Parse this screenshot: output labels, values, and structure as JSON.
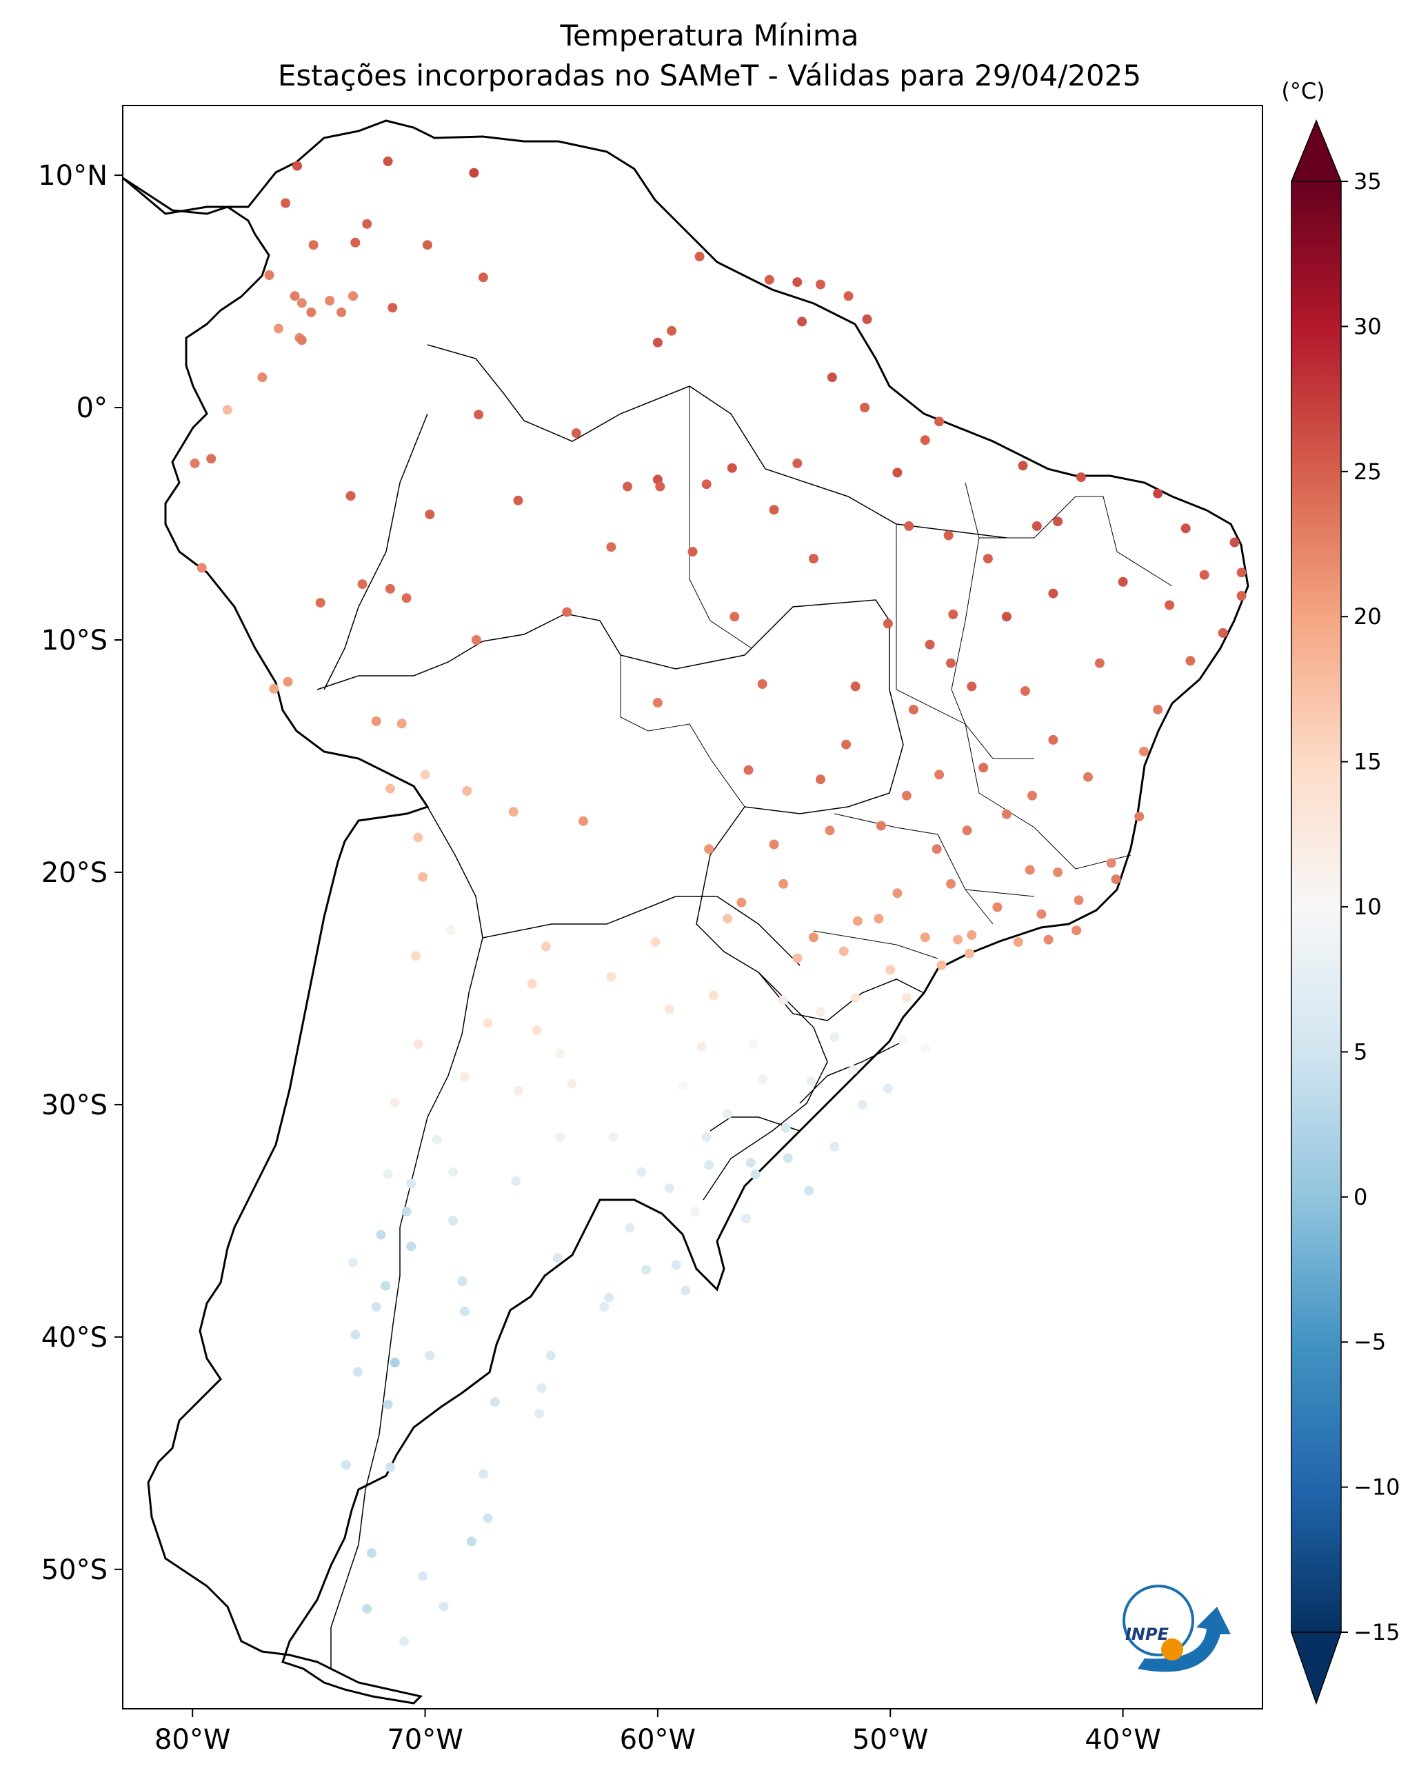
{
  "title": {
    "line1": "Temperatura Mínima",
    "line2": "Estações incorporadas no SAMeT - Válidas para 29/04/2025"
  },
  "map": {
    "lon_range": [
      -83,
      -34
    ],
    "lat_range": [
      -56,
      13
    ],
    "x_ticks": [
      {
        "lon": -80,
        "label": "80°W"
      },
      {
        "lon": -70,
        "label": "70°W"
      },
      {
        "lon": -60,
        "label": "60°W"
      },
      {
        "lon": -50,
        "label": "50°W"
      },
      {
        "lon": -40,
        "label": "40°W"
      }
    ],
    "y_ticks": [
      {
        "lat": 10,
        "label": "10°N"
      },
      {
        "lat": 0,
        "label": "0°"
      },
      {
        "lat": -10,
        "label": "10°S"
      },
      {
        "lat": -20,
        "label": "20°S"
      },
      {
        "lat": -30,
        "label": "30°S"
      },
      {
        "lat": -40,
        "label": "40°S"
      },
      {
        "lat": -50,
        "label": "50°S"
      }
    ]
  },
  "colorbar": {
    "unit": "(°C)",
    "min": -15,
    "max": 35,
    "extend": "both",
    "ticks": [
      {
        "value": 35,
        "label": "35"
      },
      {
        "value": 30,
        "label": "30"
      },
      {
        "value": 25,
        "label": "25"
      },
      {
        "value": 20,
        "label": "20"
      },
      {
        "value": 15,
        "label": "15"
      },
      {
        "value": 10,
        "label": "10"
      },
      {
        "value": 5,
        "label": "5"
      },
      {
        "value": 0,
        "label": "0"
      },
      {
        "value": -5,
        "label": "−5"
      },
      {
        "value": -10,
        "label": "−10"
      },
      {
        "value": -15,
        "label": "−15"
      }
    ],
    "colormap": "RdBu_r"
  },
  "logo": {
    "text": "INPE",
    "icon": "inpe-logo-icon"
  },
  "chart_data": {
    "type": "scatter",
    "title": "Temperatura Mínima — Estações incorporadas no SAMeT - Válidas para 29/04/2025",
    "points": [
      [
        -75.5,
        10.4,
        26
      ],
      [
        -71.6,
        10.6,
        26
      ],
      [
        -67.9,
        10.1,
        27
      ],
      [
        -72.5,
        7.9,
        25
      ],
      [
        -67.5,
        5.6,
        25
      ],
      [
        -76.0,
        8.8,
        25
      ],
      [
        -74.8,
        7.0,
        24
      ],
      [
        -73.0,
        7.1,
        25
      ],
      [
        -69.9,
        7.0,
        25
      ],
      [
        -76.7,
        5.7,
        23
      ],
      [
        -75.6,
        4.8,
        23
      ],
      [
        -75.3,
        4.5,
        22
      ],
      [
        -74.9,
        4.1,
        23
      ],
      [
        -73.6,
        4.1,
        23
      ],
      [
        -74.1,
        4.6,
        22
      ],
      [
        -75.4,
        3.0,
        22
      ],
      [
        -76.3,
        3.4,
        21
      ],
      [
        -75.3,
        2.9,
        23
      ],
      [
        -71.4,
        4.3,
        25
      ],
      [
        -73.1,
        4.8,
        22
      ],
      [
        -77.0,
        1.3,
        22
      ],
      [
        -78.5,
        -0.1,
        18
      ],
      [
        -79.2,
        -2.2,
        24
      ],
      [
        -79.9,
        -2.4,
        23
      ],
      [
        -79.6,
        -6.9,
        22
      ],
      [
        -73.2,
        -3.8,
        25
      ],
      [
        -67.7,
        -0.3,
        25
      ],
      [
        -60.0,
        2.8,
        26
      ],
      [
        -59.4,
        3.3,
        25
      ],
      [
        -63.5,
        -1.1,
        25
      ],
      [
        -60.0,
        -3.1,
        26
      ],
      [
        -59.9,
        -3.4,
        25
      ],
      [
        -57.9,
        -3.3,
        25
      ],
      [
        -56.8,
        -2.6,
        26
      ],
      [
        -61.3,
        -3.4,
        25
      ],
      [
        -54.0,
        -2.4,
        25
      ],
      [
        -55.0,
        -4.4,
        25
      ],
      [
        -49.7,
        -2.8,
        26
      ],
      [
        -48.5,
        -1.4,
        25
      ],
      [
        -47.9,
        -0.6,
        25
      ],
      [
        -51.1,
        0.0,
        25
      ],
      [
        -52.5,
        1.3,
        26
      ],
      [
        -55.2,
        5.5,
        25
      ],
      [
        -54.0,
        5.4,
        26
      ],
      [
        -53.0,
        5.3,
        25
      ],
      [
        -51.8,
        4.8,
        25
      ],
      [
        -53.8,
        3.7,
        26
      ],
      [
        -51.0,
        3.8,
        26
      ],
      [
        -58.2,
        6.5,
        25
      ],
      [
        -49.2,
        -5.1,
        25
      ],
      [
        -47.5,
        -5.5,
        25
      ],
      [
        -44.3,
        -2.5,
        26
      ],
      [
        -42.8,
        -4.9,
        26
      ],
      [
        -41.8,
        -3.0,
        26
      ],
      [
        -38.5,
        -3.7,
        27
      ],
      [
        -37.3,
        -5.2,
        26
      ],
      [
        -35.2,
        -5.8,
        26
      ],
      [
        -34.9,
        -7.1,
        25
      ],
      [
        -34.9,
        -8.1,
        25
      ],
      [
        -35.7,
        -9.7,
        25
      ],
      [
        -37.1,
        -10.9,
        24
      ],
      [
        -38.5,
        -13.0,
        23
      ],
      [
        -39.1,
        -14.8,
        22
      ],
      [
        -40.3,
        -20.3,
        23
      ],
      [
        -41.9,
        -21.2,
        22
      ],
      [
        -43.2,
        -22.9,
        22
      ],
      [
        -46.6,
        -23.5,
        18
      ],
      [
        -47.1,
        -22.9,
        19
      ],
      [
        -49.3,
        -25.4,
        13
      ],
      [
        -48.5,
        -27.6,
        10
      ],
      [
        -51.2,
        -30.0,
        7
      ],
      [
        -52.4,
        -31.8,
        7
      ],
      [
        -53.5,
        -33.7,
        5
      ],
      [
        -56.2,
        -34.9,
        7
      ],
      [
        -58.4,
        -34.6,
        9
      ],
      [
        -60.7,
        -32.9,
        7
      ],
      [
        -62.3,
        -38.7,
        7
      ],
      [
        -64.2,
        -31.4,
        9
      ],
      [
        -68.8,
        -32.9,
        8
      ],
      [
        -70.6,
        -33.4,
        6
      ],
      [
        -71.6,
        -33.0,
        8
      ],
      [
        -73.1,
        -36.8,
        7
      ],
      [
        -72.9,
        -41.5,
        5
      ],
      [
        -71.3,
        -41.1,
        2
      ],
      [
        -68.3,
        -38.9,
        5
      ],
      [
        -65.1,
        -43.3,
        7
      ],
      [
        -67.5,
        -45.9,
        6
      ],
      [
        -69.2,
        -51.6,
        6
      ],
      [
        -70.9,
        -53.1,
        7
      ],
      [
        -72.5,
        -51.7,
        4
      ],
      [
        -71.5,
        -45.6,
        5
      ],
      [
        -65.4,
        -24.8,
        15
      ],
      [
        -64.2,
        -27.8,
        11
      ],
      [
        -65.2,
        -26.8,
        14
      ],
      [
        -68.2,
        -16.5,
        18
      ],
      [
        -66.2,
        -17.4,
        19
      ],
      [
        -63.2,
        -17.8,
        21
      ],
      [
        -57.8,
        -19.0,
        21
      ],
      [
        -56.1,
        -15.6,
        24
      ],
      [
        -55.5,
        -11.9,
        24
      ],
      [
        -51.9,
        -14.5,
        24
      ],
      [
        -49.3,
        -16.7,
        23
      ],
      [
        -47.9,
        -15.8,
        23
      ],
      [
        -48.3,
        -10.2,
        25
      ],
      [
        -47.4,
        -11.0,
        25
      ],
      [
        -45.0,
        -9.0,
        26
      ],
      [
        -43.0,
        -8.0,
        26
      ],
      [
        -44.2,
        -12.2,
        24
      ],
      [
        -46.0,
        -15.5,
        24
      ],
      [
        -44.0,
        -19.9,
        22
      ],
      [
        -43.9,
        -16.7,
        23
      ],
      [
        -46.7,
        -18.2,
        23
      ],
      [
        -49.7,
        -20.9,
        21
      ],
      [
        -51.4,
        -22.1,
        20
      ],
      [
        -53.3,
        -22.8,
        21
      ],
      [
        -54.6,
        -20.5,
        21
      ],
      [
        -56.4,
        -21.3,
        21
      ],
      [
        -57.6,
        -25.3,
        14
      ],
      [
        -60.1,
        -23.0,
        15
      ],
      [
        -58.1,
        -27.5,
        12
      ],
      [
        -55.9,
        -27.4,
        10
      ],
      [
        -54.6,
        -25.5,
        12
      ],
      [
        -52.4,
        -27.1,
        8
      ],
      [
        -50.1,
        -29.3,
        7
      ],
      [
        -52.0,
        -23.4,
        18
      ],
      [
        -60.0,
        -12.7,
        23
      ],
      [
        -63.9,
        -8.8,
        24
      ],
      [
        -67.8,
        -10.0,
        23
      ],
      [
        -70.8,
        -8.2,
        24
      ],
      [
        -72.7,
        -7.6,
        24
      ],
      [
        -74.5,
        -8.4,
        24
      ],
      [
        -75.9,
        -11.8,
        21
      ],
      [
        -76.5,
        -12.1,
        20
      ],
      [
        -72.1,
        -13.5,
        21
      ],
      [
        -71.0,
        -13.6,
        20
      ],
      [
        -70.0,
        -15.8,
        16
      ],
      [
        -71.5,
        -16.4,
        18
      ],
      [
        -70.3,
        -18.5,
        17
      ],
      [
        -70.1,
        -20.2,
        18
      ],
      [
        -68.9,
        -22.5,
        11
      ],
      [
        -70.4,
        -23.6,
        15
      ],
      [
        -70.3,
        -27.4,
        13
      ],
      [
        -71.3,
        -29.9,
        12
      ],
      [
        -68.3,
        -28.8,
        12
      ],
      [
        -66.0,
        -29.4,
        12
      ],
      [
        -63.7,
        -29.1,
        12
      ],
      [
        -61.9,
        -31.4,
        9
      ],
      [
        -58.9,
        -29.2,
        10
      ],
      [
        -57.0,
        -30.4,
        8
      ],
      [
        -54.4,
        -32.3,
        5
      ],
      [
        -55.8,
        -33.0,
        5
      ],
      [
        -57.9,
        -31.4,
        7
      ],
      [
        -59.5,
        -33.6,
        7
      ],
      [
        -61.2,
        -35.3,
        7
      ],
      [
        -64.3,
        -36.6,
        6
      ],
      [
        -66.1,
        -33.3,
        7
      ],
      [
        -68.8,
        -35.0,
        6
      ],
      [
        -70.8,
        -34.6,
        4
      ],
      [
        -71.9,
        -35.6,
        4
      ],
      [
        -72.1,
        -38.7,
        5
      ],
      [
        -73.0,
        -39.9,
        5
      ],
      [
        -71.6,
        -42.9,
        4
      ],
      [
        -69.8,
        -40.8,
        6
      ],
      [
        -67.0,
        -42.8,
        5
      ],
      [
        -68.0,
        -48.8,
        4
      ],
      [
        -70.1,
        -50.3,
        6
      ],
      [
        -72.3,
        -49.3,
        4
      ],
      [
        -73.4,
        -45.5,
        5
      ],
      [
        -71.7,
        -37.8,
        4
      ],
      [
        -70.6,
        -36.1,
        4
      ],
      [
        -68.4,
        -37.6,
        5
      ],
      [
        -60.5,
        -37.1,
        6
      ],
      [
        -59.2,
        -36.9,
        6
      ],
      [
        -58.8,
        -38.0,
        6
      ],
      [
        -62.1,
        -38.3,
        6
      ],
      [
        -64.6,
        -40.8,
        6
      ],
      [
        -65.0,
        -42.2,
        7
      ],
      [
        -67.3,
        -47.8,
        5
      ],
      [
        -42.0,
        -22.5,
        22
      ],
      [
        -43.5,
        -21.8,
        22
      ],
      [
        -45.4,
        -21.5,
        22
      ],
      [
        -47.4,
        -20.5,
        22
      ],
      [
        -48.0,
        -19.0,
        23
      ],
      [
        -50.4,
        -18.0,
        23
      ],
      [
        -52.6,
        -18.2,
        22
      ],
      [
        -55.0,
        -18.8,
        22
      ],
      [
        -53.0,
        -16.0,
        24
      ],
      [
        -51.5,
        -12.0,
        25
      ],
      [
        -49.0,
        -13.0,
        24
      ],
      [
        -46.5,
        -12.0,
        25
      ],
      [
        -41.0,
        -11.0,
        24
      ],
      [
        -40.0,
        -7.5,
        26
      ],
      [
        -38.0,
        -8.5,
        25
      ],
      [
        -36.5,
        -7.2,
        25
      ],
      [
        -39.3,
        -17.6,
        23
      ],
      [
        -41.5,
        -15.9,
        23
      ],
      [
        -43.0,
        -14.3,
        24
      ],
      [
        -45.0,
        -17.5,
        23
      ],
      [
        -48.5,
        -22.8,
        20
      ],
      [
        -50.0,
        -24.2,
        16
      ],
      [
        -51.5,
        -25.4,
        13
      ],
      [
        -53.0,
        -26.0,
        12
      ],
      [
        -49.5,
        -27.2,
        10
      ],
      [
        -51.6,
        -28.5,
        9
      ],
      [
        -53.4,
        -29.0,
        8
      ],
      [
        -55.5,
        -28.9,
        9
      ],
      [
        -54.5,
        -31.0,
        6
      ],
      [
        -56.0,
        -32.5,
        5
      ],
      [
        -57.8,
        -32.6,
        6
      ],
      [
        -69.5,
        -31.5,
        8
      ],
      [
        -67.3,
        -26.5,
        14
      ],
      [
        -64.8,
        -23.2,
        16
      ],
      [
        -62.0,
        -24.5,
        14
      ],
      [
        -59.5,
        -25.9,
        13
      ],
      [
        -57.0,
        -22.0,
        17
      ],
      [
        -54.0,
        -23.7,
        18
      ],
      [
        -50.5,
        -22.0,
        20
      ],
      [
        -47.8,
        -24.0,
        18
      ],
      [
        -46.5,
        -22.7,
        20
      ],
      [
        -44.5,
        -23.0,
        20
      ],
      [
        -42.8,
        -20.0,
        22
      ],
      [
        -40.5,
        -19.6,
        22
      ],
      [
        -45.8,
        -6.5,
        25
      ],
      [
        -43.7,
        -5.1,
        26
      ],
      [
        -47.3,
        -8.9,
        25
      ],
      [
        -50.1,
        -9.3,
        25
      ],
      [
        -53.3,
        -6.5,
        25
      ],
      [
        -56.7,
        -9.0,
        24
      ],
      [
        -58.5,
        -6.2,
        25
      ],
      [
        -62.0,
        -6.0,
        24
      ],
      [
        -66.0,
        -4.0,
        25
      ],
      [
        -69.8,
        -4.6,
        25
      ],
      [
        -71.5,
        -7.8,
        24
      ]
    ]
  }
}
